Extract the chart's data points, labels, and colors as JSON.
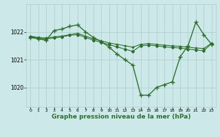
{
  "background_color": "#cce8e8",
  "plot_bg_color": "#cce8e8",
  "grid_color": "#aacccc",
  "line_color": "#2d6e2d",
  "marker_color": "#2d6e2d",
  "xlabel": "Graphe pression niveau de la mer (hPa)",
  "xlabel_fontsize": 6.5,
  "ylabel_ticks": [
    1020,
    1021,
    1022
  ],
  "xlim": [
    -0.5,
    23.5
  ],
  "ylim": [
    1019.3,
    1023.0
  ],
  "xticks": [
    0,
    1,
    2,
    3,
    4,
    5,
    6,
    7,
    8,
    9,
    10,
    11,
    12,
    13,
    14,
    15,
    16,
    17,
    18,
    19,
    20,
    21,
    22,
    23
  ],
  "series": [
    {
      "x": [
        0,
        1,
        2,
        3,
        4,
        5,
        6,
        7,
        8,
        9,
        10,
        11,
        12,
        13,
        14,
        15,
        16,
        17,
        18,
        19,
        20,
        21,
        22,
        23
      ],
      "y": [
        1021.8,
        1021.75,
        1021.7,
        1022.05,
        1022.1,
        1022.2,
        1022.25,
        1022.0,
        1021.8,
        1021.65,
        1021.45,
        1021.2,
        1021.0,
        1020.8,
        1019.72,
        1019.72,
        1020.0,
        1020.1,
        1020.2,
        1021.1,
        1021.5,
        1022.35,
        1021.9,
        1021.55
      ],
      "marker": "+",
      "markersize": 4,
      "linewidth": 1.0
    },
    {
      "x": [
        0,
        1,
        2,
        3,
        4,
        5,
        6,
        7,
        8,
        9,
        10,
        11,
        12,
        13,
        14,
        15,
        16,
        17,
        18,
        19,
        20,
        21,
        22,
        23
      ],
      "y": [
        1021.85,
        1021.8,
        1021.78,
        1021.82,
        1021.85,
        1021.9,
        1021.95,
        1021.85,
        1021.75,
        1021.68,
        1021.6,
        1021.55,
        1021.5,
        1021.45,
        1021.55,
        1021.58,
        1021.55,
        1021.52,
        1021.5,
        1021.48,
        1021.45,
        1021.42,
        1021.4,
        1021.6
      ],
      "marker": "+",
      "markersize": 3,
      "linewidth": 0.8
    },
    {
      "x": [
        0,
        1,
        2,
        3,
        4,
        5,
        6,
        7,
        8,
        9,
        10,
        11,
        12,
        13,
        14,
        15,
        16,
        17,
        18,
        19,
        20,
        21,
        22,
        23
      ],
      "y": [
        1021.82,
        1021.78,
        1021.74,
        1021.78,
        1021.82,
        1021.88,
        1021.9,
        1021.8,
        1021.7,
        1021.62,
        1021.54,
        1021.46,
        1021.38,
        1021.3,
        1021.5,
        1021.52,
        1021.5,
        1021.46,
        1021.44,
        1021.42,
        1021.38,
        1021.35,
        1021.32,
        1021.58
      ],
      "marker": "D",
      "markersize": 2,
      "linewidth": 0.8
    }
  ]
}
